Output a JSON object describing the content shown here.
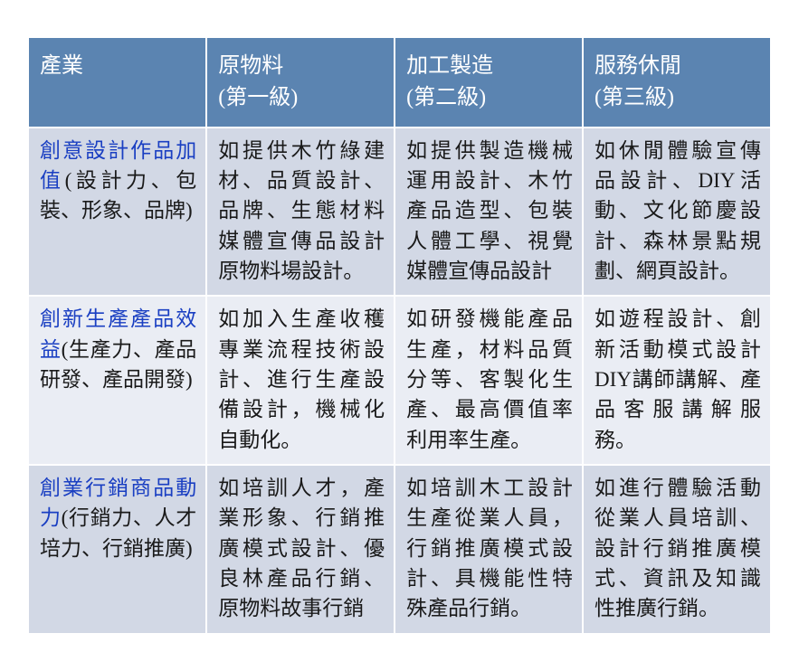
{
  "table": {
    "header_bg": "#5b84b1",
    "header_color": "#ffffff",
    "band_a_bg": "#d2d8e5",
    "band_b_bg": "#eaedf4",
    "cat_title_color": "#1a3fc2",
    "body_text_color": "#1a1a1a",
    "font_size_header": 24,
    "font_size_body": 23,
    "columns": [
      {
        "line1": "產業",
        "line2": ""
      },
      {
        "line1": "原物料",
        "line2": "(第一級)"
      },
      {
        "line1": "加工製造",
        "line2": "(第二級)"
      },
      {
        "line1": "服務休閒",
        "line2": "(第三級)"
      }
    ],
    "rows": [
      {
        "band": "a",
        "cat_title": "創意設計作品加值",
        "cat_sub": "(設計力、包裝、形象、品牌)",
        "c1": "如提供木竹綠建材、品質設計、品牌、生態材料媒體宣傳品設計原物料場設計。",
        "c2": "如提供製造機械運用設計、木竹產品造型、包裝人體工學、視覺媒體宣傳品設計",
        "c3": "如休閒體驗宣傳品設計、DIY活動、文化節慶設計、森林景點規劃、網頁設計。"
      },
      {
        "band": "b",
        "cat_title": "創新生產產品效益",
        "cat_sub": "(生產力、產品研發、產品開發)",
        "c1": "如加入生產收穫專業流程技術設計、進行生產設備設計，機械化自動化。",
        "c2": "如研發機能產品生產，材料品質分等、客製化生產、最高價值率利用率生產。",
        "c3": "如遊程設計、創新活動模式設計DIY講師講解、產品客服講解服務。"
      },
      {
        "band": "a",
        "cat_title": "創業行銷商品動力",
        "cat_sub": "(行銷力、人才培力、行銷推廣)",
        "c1": "如培訓人才，產業形象、行銷推廣模式設計、優良林產品行銷、原物料故事行銷",
        "c2": "如培訓木工設計生產從業人員，行銷推廣模式設計、具機能性特殊產品行銷。",
        "c3": "如進行體驗活動從業人員培訓、設計行銷推廣模式、資訊及知識性推廣行銷。"
      }
    ]
  }
}
